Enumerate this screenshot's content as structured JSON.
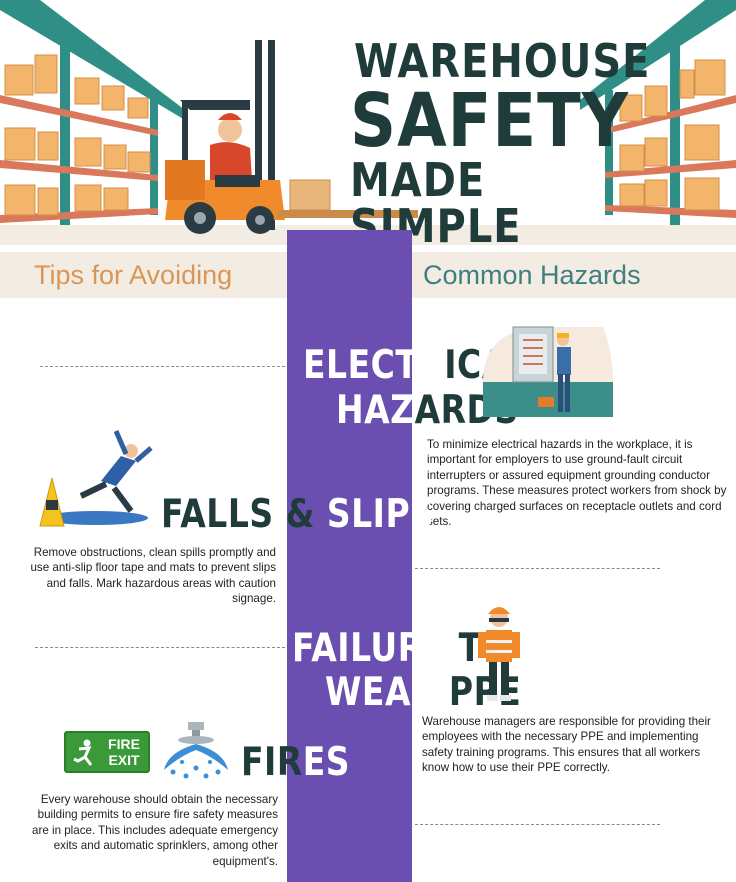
{
  "title": {
    "line1": "WAREHOUSE",
    "line2": "SAFETY",
    "line3": "MADE SIMPLE"
  },
  "subtitle": {
    "left": "Tips for Avoiding",
    "right": "Common Hazards"
  },
  "sections": {
    "electrical": {
      "line1_white": "ELECTR",
      "line1_dark": "ICAL",
      "line2_white": "HAZ",
      "line2_dark": "ARDS",
      "text": "To minimize electrical hazards in the workplace, it is important for employers to use ground-fault circuit interrupters or assured equipment grounding conductor programs. These measures protect workers from shock by covering charged surfaces on receptacle outlets and cord sets."
    },
    "falls": {
      "dark": "FALLS & ",
      "white": "SLIPS",
      "text": "Remove obstructions, clean spills promptly and use anti-slip floor tape and mats to prevent slips and falls. Mark hazardous areas with caution signage."
    },
    "ppe": {
      "line1_white": "FAILURE",
      "line1_dark": " TO",
      "line2_white": "WEAR",
      "line2_dark": " PPE",
      "text": "Warehouse managers are responsible for providing their employees with the necessary PPE and implementing safety training programs. This ensures that all workers know how to use their PPE correctly."
    },
    "fires": {
      "dark": "FIR",
      "white": "ES",
      "sign_line1": "FIRE",
      "sign_line2": "EXIT",
      "text": "Every warehouse should obtain the necessary building permits to ensure fire safety measures are in place. This includes adequate emergency exits and automatic sprinklers, among other equipment's."
    }
  },
  "colors": {
    "purple": "#6a4fb0",
    "dark_teal": "#1f3b3a",
    "orange": "#d99658",
    "teal": "#3f7f80",
    "fire_green": "#3a9a3a"
  },
  "icons": [
    "warehouse-shelf-icon",
    "forklift-icon",
    "electrician-icon",
    "slipping-worker-icon",
    "wet-floor-sign-icon",
    "ppe-worker-icon",
    "fire-exit-sign-icon",
    "sprinkler-icon"
  ]
}
